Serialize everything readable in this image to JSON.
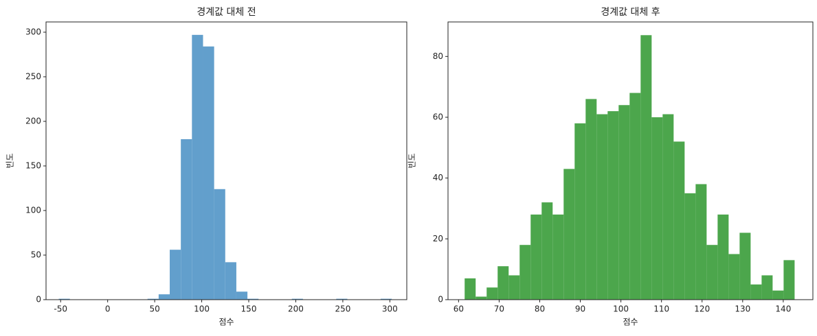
{
  "chart_data": [
    {
      "type": "histogram",
      "title": "경계값 대체 전",
      "x_label": "점수",
      "y_label": "빈도",
      "color": "#629fcc",
      "bins": [
        -52,
        -40.2,
        -28.4,
        -16.6,
        -4.8,
        7,
        18.8,
        30.6,
        42.4,
        54.2,
        66,
        77.8,
        89.6,
        101.4,
        113.2,
        125,
        136.8,
        148.6,
        160.4,
        172.2,
        184,
        195.8,
        207.6,
        219.4,
        231.2,
        243,
        254.8,
        266.6,
        278.4,
        290.2,
        302
      ],
      "values": [
        1,
        0,
        0,
        0,
        0,
        0,
        0,
        0,
        1,
        6,
        56,
        180,
        297,
        284,
        124,
        42,
        9,
        1,
        0,
        0,
        0,
        1,
        0,
        0,
        0,
        1,
        0,
        0,
        0,
        1
      ],
      "xlim": [
        -65.5,
        318
      ],
      "ylim": [
        0,
        311.5
      ],
      "xticks": [
        -50,
        0,
        50,
        100,
        150,
        200,
        250,
        300
      ],
      "yticks": [
        0,
        50,
        100,
        150,
        200,
        250,
        300
      ]
    },
    {
      "type": "histogram",
      "title": "경계값 대체 후",
      "x_label": "점수",
      "y_label": "빈도",
      "color": "#4ca64c",
      "bins": [
        61.5,
        64.21,
        66.92,
        69.63,
        72.34,
        75.05,
        77.76,
        80.47,
        83.18,
        85.89,
        88.6,
        91.31,
        94.02,
        96.73,
        99.44,
        102.15,
        104.86,
        107.57,
        110.28,
        112.99,
        115.7,
        118.41,
        121.12,
        123.83,
        126.54,
        129.25,
        131.96,
        134.67,
        137.38,
        140.09,
        142.8
      ],
      "values": [
        7,
        1,
        4,
        11,
        8,
        18,
        28,
        32,
        28,
        43,
        58,
        66,
        61,
        62,
        64,
        68,
        87,
        60,
        61,
        52,
        35,
        38,
        18,
        28,
        15,
        22,
        5,
        8,
        3,
        13
      ],
      "xlim": [
        57.4,
        147.3
      ],
      "ylim": [
        0,
        91.35
      ],
      "xticks": [
        60,
        70,
        80,
        90,
        100,
        110,
        120,
        130,
        140
      ],
      "yticks": [
        0,
        20,
        40,
        60,
        80
      ]
    }
  ]
}
